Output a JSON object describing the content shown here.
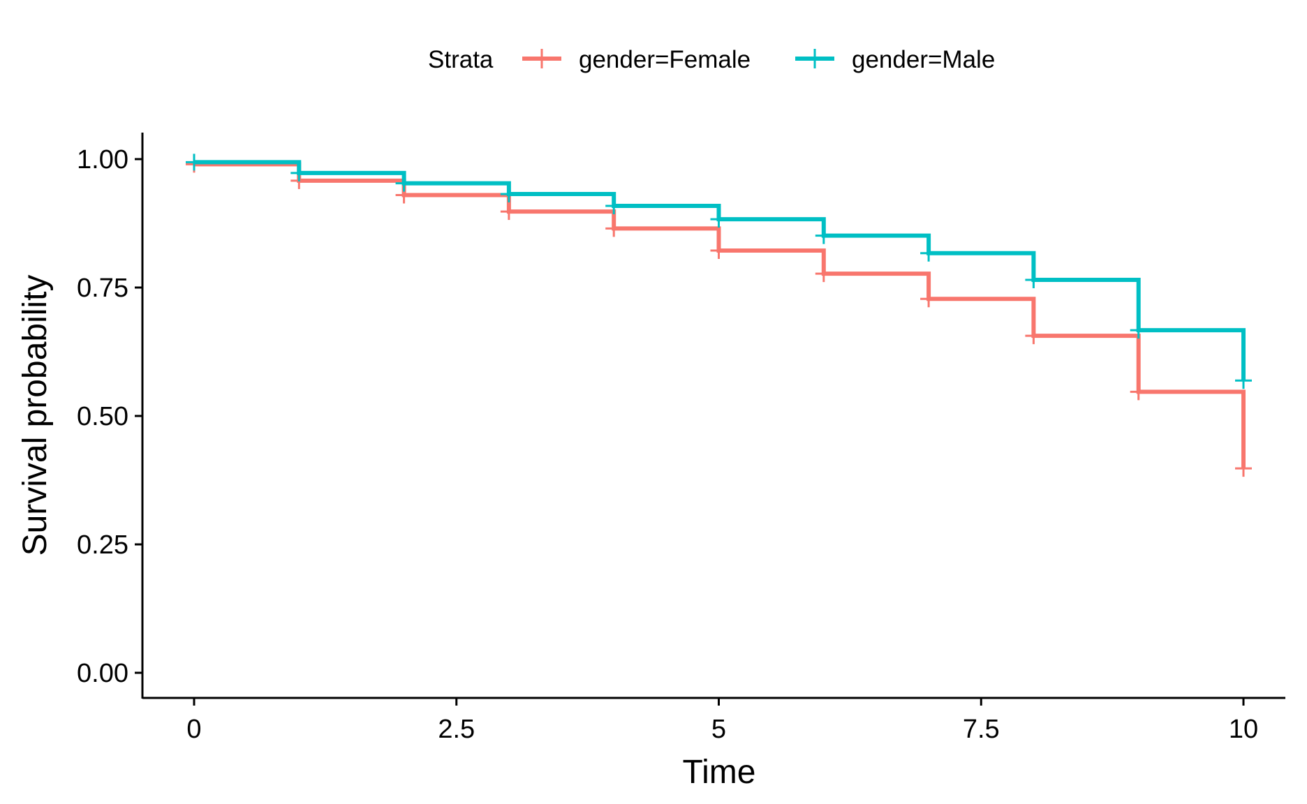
{
  "chart_data": {
    "type": "line",
    "step": true,
    "title": "",
    "xlabel": "Time",
    "ylabel": "Survival probability",
    "xlim": [
      0,
      10
    ],
    "ylim": [
      0,
      1
    ],
    "x_ticks": [
      0,
      2.5,
      5,
      7.5,
      10
    ],
    "x_tick_labels": [
      "0",
      "2.5",
      "5",
      "7.5",
      "10"
    ],
    "y_ticks": [
      0,
      0.25,
      0.5,
      0.75,
      1
    ],
    "y_tick_labels": [
      "0.00",
      "0.25",
      "0.50",
      "0.75",
      "1.00"
    ],
    "grid": false,
    "legend": {
      "title": "Strata",
      "position": "top",
      "entries": [
        "gender=Female",
        "gender=Male"
      ]
    },
    "series": [
      {
        "name": "gender=Female",
        "color": "#F8766D",
        "x": [
          0,
          1,
          2,
          3,
          4,
          5,
          6,
          7,
          8,
          9,
          10
        ],
        "y": [
          0.99,
          0.958,
          0.93,
          0.898,
          0.865,
          0.822,
          0.777,
          0.728,
          0.656,
          0.547,
          0.398
        ],
        "censor_x": [
          0,
          1,
          2,
          3,
          4,
          5,
          6,
          7,
          8,
          9,
          10
        ],
        "censor_y": [
          0.99,
          0.958,
          0.93,
          0.898,
          0.865,
          0.822,
          0.777,
          0.728,
          0.656,
          0.547,
          0.398
        ]
      },
      {
        "name": "gender=Male",
        "color": "#00BFC4",
        "x": [
          0,
          1,
          2,
          3,
          4,
          5,
          6,
          7,
          8,
          9,
          10
        ],
        "y": [
          0.994,
          0.973,
          0.953,
          0.932,
          0.909,
          0.883,
          0.851,
          0.817,
          0.765,
          0.667,
          0.569
        ],
        "censor_x": [
          0,
          1,
          2,
          3,
          4,
          5,
          6,
          7,
          8,
          9,
          10
        ],
        "censor_y": [
          0.994,
          0.973,
          0.953,
          0.932,
          0.909,
          0.883,
          0.851,
          0.817,
          0.765,
          0.667,
          0.569
        ]
      }
    ]
  }
}
